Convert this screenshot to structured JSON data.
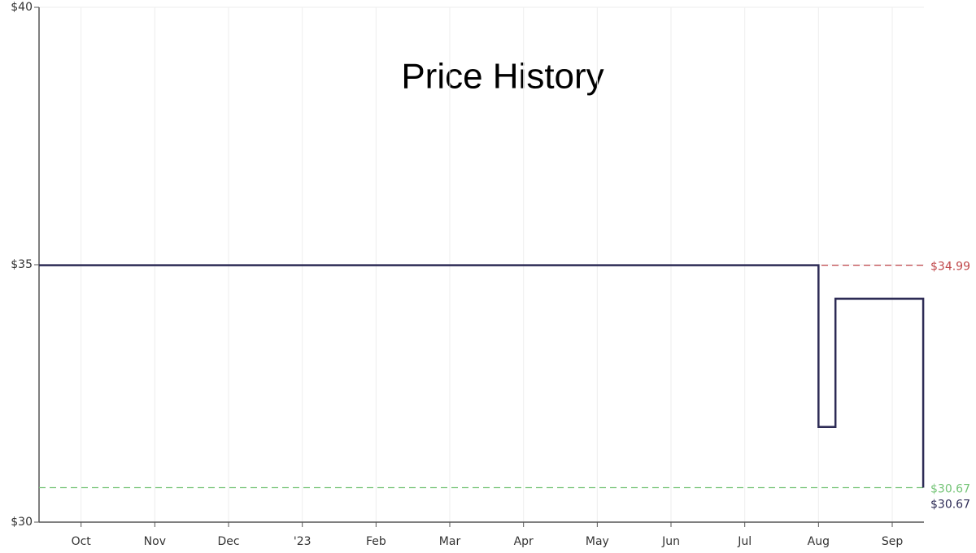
{
  "chart_data": {
    "type": "line",
    "title": "Price History",
    "x": [
      0.43,
      11.0,
      11.0,
      11.23,
      11.23,
      12.42,
      12.42
    ],
    "series": [
      {
        "name": "Price",
        "color": "#2d2b55",
        "values": [
          34.99,
          34.99,
          31.85,
          31.85,
          34.34,
          34.34,
          30.67
        ]
      }
    ],
    "xlim": [
      0.43,
      12.43
    ],
    "xticks": [
      {
        "value": 1,
        "label": "Oct"
      },
      {
        "value": 2,
        "label": "Nov"
      },
      {
        "value": 3,
        "label": "Dec"
      },
      {
        "value": 4,
        "label": "'23"
      },
      {
        "value": 5,
        "label": "Feb"
      },
      {
        "value": 6,
        "label": "Mar"
      },
      {
        "value": 7,
        "label": "Apr"
      },
      {
        "value": 8,
        "label": "May"
      },
      {
        "value": 9,
        "label": "Jun"
      },
      {
        "value": 10,
        "label": "Jul"
      },
      {
        "value": 11,
        "label": "Aug"
      },
      {
        "value": 12,
        "label": "Sep"
      }
    ],
    "ylim": [
      30,
      40
    ],
    "yticks": [
      {
        "value": 30,
        "label": "$30"
      },
      {
        "value": 35,
        "label": "$35"
      },
      {
        "value": 40,
        "label": "$40"
      }
    ],
    "grid": true,
    "reference_lines": [
      {
        "value": 34.99,
        "label": "$34.99",
        "color": "#c0474a"
      },
      {
        "value": 30.67,
        "label": "$30.67",
        "color": "#74c476"
      }
    ],
    "current": {
      "value": 30.67,
      "label": "$30.67",
      "color": "#2d2b55"
    }
  }
}
